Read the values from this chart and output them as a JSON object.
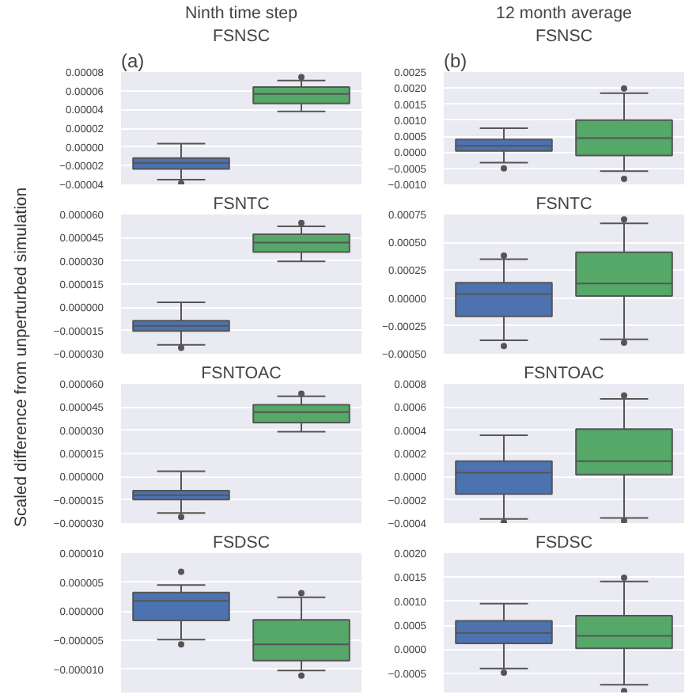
{
  "chart_data": [
    {
      "type": "box",
      "subtitle": "Ninth time step",
      "title": "FSNSC",
      "annotations": [
        "(a)"
      ],
      "ylabel": "Scaled difference from unperturbed simulation",
      "categories": [
        null,
        null
      ],
      "colors": [
        "#4c72b0",
        "#55a868"
      ],
      "boxes": [
        {
          "low": -3.5e-05,
          "q1": -2.35e-05,
          "median": -1.7e-05,
          "q3": -1.2e-05,
          "high": 3.5e-06,
          "outliers": [
            -3.9e-05
          ]
        },
        {
          "low": 3.8e-05,
          "q1": 4.65e-05,
          "median": 5.65e-05,
          "q3": 6.4e-05,
          "high": 7.1e-05,
          "outliers": [
            7.45e-05
          ]
        }
      ],
      "ylim": [
        -4e-05,
        8e-05
      ],
      "yticks": [
        {
          "value": -4e-05,
          "label": "−0.00004"
        },
        {
          "value": -2e-05,
          "label": "−0.00002"
        },
        {
          "value": 0,
          "label": "0.00000"
        },
        {
          "value": 2e-05,
          "label": "0.00002"
        },
        {
          "value": 4e-05,
          "label": "0.00004"
        },
        {
          "value": 6e-05,
          "label": "0.00006"
        },
        {
          "value": 8e-05,
          "label": "0.00008"
        }
      ],
      "grid": "y",
      "tick_labels": "y"
    },
    {
      "type": "box",
      "subtitle": "12 month average",
      "title": "FSNSC",
      "annotations": [
        "(b)"
      ],
      "categories": [
        null,
        null
      ],
      "colors": [
        "#4c72b0",
        "#55a868"
      ],
      "boxes": [
        {
          "low": -0.000325,
          "q1": 4e-05,
          "median": 0.0002,
          "q3": 0.0004,
          "high": 0.00075,
          "outliers": [
            -0.0005
          ]
        },
        {
          "low": -0.00059,
          "q1": -0.0001,
          "median": 0.00044,
          "q3": 0.001,
          "high": 0.00184,
          "outliers": [
            0.00199,
            -0.00083
          ]
        }
      ],
      "ylim": [
        -0.001,
        0.0025
      ],
      "yticks": [
        {
          "value": -0.001,
          "label": "−0.0010"
        },
        {
          "value": -0.0005,
          "label": "−0.0005"
        },
        {
          "value": 0,
          "label": "0.0000"
        },
        {
          "value": 0.0005,
          "label": "0.0005"
        },
        {
          "value": 0.001,
          "label": "0.0010"
        },
        {
          "value": 0.0015,
          "label": "0.0015"
        },
        {
          "value": 0.002,
          "label": "0.0020"
        },
        {
          "value": 0.0025,
          "label": "0.0025"
        }
      ],
      "grid": "y",
      "tick_labels": "y"
    },
    {
      "type": "box",
      "title": "FSNTC",
      "categories": [
        null,
        null
      ],
      "colors": [
        "#4c72b0",
        "#55a868"
      ],
      "boxes": [
        {
          "low": -2.43e-05,
          "q1": -1.53e-05,
          "median": -1.2e-05,
          "q3": -8.6e-06,
          "high": 3.2e-06,
          "outliers": [
            -2.62e-05
          ]
        },
        {
          "low": 2.97e-05,
          "q1": 3.57e-05,
          "median": 4.18e-05,
          "q3": 4.72e-05,
          "high": 5.23e-05,
          "outliers": [
            5.45e-05
          ]
        }
      ],
      "ylim": [
        -3e-05,
        6e-05
      ],
      "yticks": [
        {
          "value": -3e-05,
          "label": "−0.000030"
        },
        {
          "value": -1.5e-05,
          "label": "−0.000015"
        },
        {
          "value": 0,
          "label": "0.000000"
        },
        {
          "value": 1.5e-05,
          "label": "0.000015"
        },
        {
          "value": 3e-05,
          "label": "0.000030"
        },
        {
          "value": 4.5e-05,
          "label": "0.000045"
        },
        {
          "value": 6e-05,
          "label": "0.000060"
        }
      ],
      "grid": "y",
      "tick_labels": "y"
    },
    {
      "type": "box",
      "title": "FSNTC",
      "categories": [
        null,
        null
      ],
      "colors": [
        "#4c72b0",
        "#55a868"
      ],
      "boxes": [
        {
          "low": -0.00038,
          "q1": -0.000165,
          "median": 3.6e-05,
          "q3": 0.000138,
          "high": 0.000348,
          "outliers": [
            0.00038,
            -0.00043
          ]
        },
        {
          "low": -0.00037,
          "q1": 1.8e-05,
          "median": 0.00013,
          "q3": 0.00041,
          "high": 0.00067,
          "outliers": [
            0.000705,
            -0.0004
          ]
        }
      ],
      "ylim": [
        -0.0005,
        0.00075
      ],
      "yticks": [
        {
          "value": -0.0005,
          "label": "−0.00050"
        },
        {
          "value": -0.00025,
          "label": "−0.00025"
        },
        {
          "value": 0,
          "label": "0.00000"
        },
        {
          "value": 0.00025,
          "label": "0.00025"
        },
        {
          "value": 0.0005,
          "label": "0.00050"
        },
        {
          "value": 0.00075,
          "label": "0.00075"
        }
      ],
      "grid": "y",
      "tick_labels": "y"
    },
    {
      "type": "box",
      "title": "FSNTOAC",
      "categories": [
        null,
        null
      ],
      "colors": [
        "#4c72b0",
        "#55a868"
      ],
      "boxes": [
        {
          "low": -2.35e-05,
          "q1": -1.48e-05,
          "median": -1.2e-05,
          "q3": -9e-06,
          "high": 3.5e-06,
          "outliers": [
            -2.6e-05
          ]
        },
        {
          "low": 2.9e-05,
          "q1": 3.5e-05,
          "median": 4.17e-05,
          "q3": 4.65e-05,
          "high": 5.2e-05,
          "outliers": [
            5.36e-05
          ]
        }
      ],
      "ylim": [
        -3e-05,
        6e-05
      ],
      "yticks": [
        {
          "value": -3e-05,
          "label": "−0.000030"
        },
        {
          "value": -1.5e-05,
          "label": "−0.000015"
        },
        {
          "value": 0,
          "label": "0.000000"
        },
        {
          "value": 1.5e-05,
          "label": "0.000015"
        },
        {
          "value": 3e-05,
          "label": "0.000030"
        },
        {
          "value": 4.5e-05,
          "label": "0.000045"
        },
        {
          "value": 6e-05,
          "label": "0.000060"
        }
      ],
      "grid": "y",
      "tick_labels": "y"
    },
    {
      "type": "box",
      "title": "FSNTOAC",
      "categories": [
        null,
        null
      ],
      "colors": [
        "#4c72b0",
        "#55a868"
      ],
      "boxes": [
        {
          "low": -0.000364,
          "q1": -0.00015,
          "median": 3.4e-05,
          "q3": 0.000133,
          "high": 0.000356,
          "outliers": [
            -0.000394
          ]
        },
        {
          "low": -0.000356,
          "q1": 1.7e-05,
          "median": 0.000133,
          "q3": 0.00041,
          "high": 0.00067,
          "outliers": [
            0.0007,
            -0.00038
          ]
        }
      ],
      "ylim": [
        -0.0004,
        0.0008
      ],
      "yticks": [
        {
          "value": -0.0004,
          "label": "−0.0004"
        },
        {
          "value": -0.0002,
          "label": "−0.0002"
        },
        {
          "value": 0,
          "label": "0.0000"
        },
        {
          "value": 0.0002,
          "label": "0.0002"
        },
        {
          "value": 0.0004,
          "label": "0.0004"
        },
        {
          "value": 0.0006,
          "label": "0.0006"
        },
        {
          "value": 0.0008,
          "label": "0.0008"
        }
      ],
      "grid": "y",
      "tick_labels": "y"
    },
    {
      "type": "box",
      "title": "FSDSC",
      "categories": [
        null,
        null
      ],
      "colors": [
        "#4c72b0",
        "#55a868"
      ],
      "boxes": [
        {
          "low": -4.9e-06,
          "q1": -1.6e-06,
          "median": 1.8e-06,
          "q3": 3.2e-06,
          "high": 4.5e-06,
          "outliers": [
            6.8e-06,
            -5.7e-06
          ]
        },
        {
          "low": -1.02e-05,
          "q1": -8.5e-06,
          "median": -5.7e-06,
          "q3": -1.5e-06,
          "high": 2.4e-06,
          "outliers": [
            3.1e-06,
            -1.11e-05
          ]
        }
      ],
      "ylim": [
        -1.4e-05,
        1e-05
      ],
      "yticks": [
        {
          "value": -1e-05,
          "label": "−0.000010"
        },
        {
          "value": -5e-06,
          "label": "−0.000005"
        },
        {
          "value": 0,
          "label": "0.000000"
        },
        {
          "value": 5e-06,
          "label": "0.000005"
        },
        {
          "value": 1e-05,
          "label": "0.000010"
        }
      ],
      "grid": "y",
      "tick_labels": "y"
    },
    {
      "type": "box",
      "title": "FSDSC",
      "categories": [
        null,
        null
      ],
      "colors": [
        "#4c72b0",
        "#55a868"
      ],
      "boxes": [
        {
          "low": -0.0004,
          "q1": 0.00012,
          "median": 0.00034,
          "q3": 0.00059,
          "high": 0.00095,
          "outliers": [
            -0.00049
          ]
        },
        {
          "low": -0.00074,
          "q1": 2e-05,
          "median": 0.00028,
          "q3": 0.0007,
          "high": 0.00141,
          "outliers": [
            0.00149,
            -0.00087
          ]
        }
      ],
      "ylim": [
        -0.0009,
        0.002
      ],
      "yticks": [
        {
          "value": -0.0005,
          "label": "−0.0005"
        },
        {
          "value": 0,
          "label": "0.0000"
        },
        {
          "value": 0.0005,
          "label": "0.0005"
        },
        {
          "value": 0.001,
          "label": "0.0010"
        },
        {
          "value": 0.0015,
          "label": "0.0015"
        },
        {
          "value": 0.002,
          "label": "0.0020"
        }
      ],
      "grid": "y",
      "tick_labels": "y"
    }
  ]
}
